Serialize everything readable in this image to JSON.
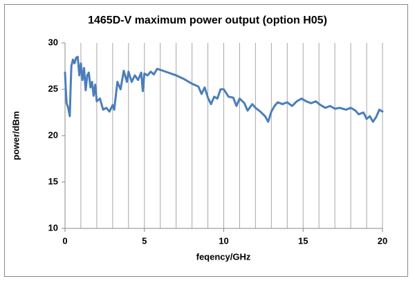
{
  "chart_data": {
    "type": "line",
    "title": "1465D-V maximum power output (option H05)",
    "x_label": "feqency/GHz",
    "y_label": "power/dBm",
    "xlim": [
      0,
      20
    ],
    "ylim": [
      10,
      30
    ],
    "xticks": [
      0,
      5,
      10,
      15,
      20
    ],
    "x_minor_ticks": [
      1,
      2,
      3,
      4,
      6,
      7,
      8,
      9,
      11,
      12,
      13,
      14,
      16,
      17,
      18,
      19
    ],
    "yticks": [
      10,
      15,
      20,
      25,
      30
    ],
    "grid": "x",
    "series": [
      {
        "name": "power",
        "color": "#4a7ebb",
        "x": [
          0,
          0.05,
          0.1,
          0.2,
          0.3,
          0.35,
          0.4,
          0.5,
          0.6,
          0.7,
          0.8,
          0.9,
          1.0,
          1.1,
          1.2,
          1.3,
          1.4,
          1.5,
          1.6,
          1.7,
          1.8,
          1.9,
          2.0,
          2.2,
          2.4,
          2.6,
          2.8,
          3.0,
          3.1,
          3.3,
          3.5,
          3.7,
          3.9,
          4.0,
          4.2,
          4.4,
          4.6,
          4.8,
          4.9,
          5.0,
          5.2,
          5.4,
          5.6,
          5.8,
          6.0,
          6.5,
          7.0,
          7.5,
          8.0,
          8.4,
          8.6,
          8.8,
          9.0,
          9.2,
          9.4,
          9.6,
          9.8,
          10.0,
          10.3,
          10.6,
          10.8,
          11.0,
          11.3,
          11.5,
          11.8,
          12.0,
          12.3,
          12.6,
          12.8,
          13.0,
          13.2,
          13.4,
          13.7,
          14.0,
          14.3,
          14.6,
          14.9,
          15.2,
          15.5,
          15.8,
          16.1,
          16.4,
          16.7,
          17.0,
          17.3,
          17.7,
          18.0,
          18.3,
          18.5,
          18.8,
          19.0,
          19.2,
          19.4,
          19.6,
          19.8,
          20.0
        ],
        "values": [
          26.8,
          25,
          23.5,
          23,
          22.1,
          25,
          27.5,
          28.2,
          27.8,
          28.4,
          28.5,
          26.5,
          27.8,
          26,
          27.3,
          24.9,
          26.5,
          26.8,
          25.2,
          25.8,
          24.3,
          25.5,
          23.7,
          24.0,
          22.8,
          23.0,
          22.6,
          23.3,
          22.8,
          25.8,
          25.0,
          27.0,
          25.8,
          26.9,
          25.8,
          26.5,
          26.0,
          26.8,
          24.8,
          26.7,
          26.5,
          26.9,
          26.6,
          27.2,
          27.1,
          26.8,
          26.5,
          26.1,
          25.6,
          25.3,
          24.5,
          25.2,
          24.1,
          23.4,
          24.2,
          24.0,
          25.0,
          25.0,
          24.2,
          24.1,
          23.2,
          24.0,
          23.5,
          22.7,
          23.4,
          23.0,
          22.6,
          22.1,
          21.5,
          22.6,
          23.2,
          23.6,
          23.4,
          23.6,
          23.2,
          23.7,
          24.0,
          23.7,
          23.5,
          23.7,
          23.3,
          23.0,
          23.2,
          22.9,
          23.0,
          22.8,
          23.0,
          22.7,
          22.3,
          22.5,
          21.8,
          22.1,
          21.5,
          22.0,
          22.8,
          22.6
        ]
      }
    ]
  }
}
